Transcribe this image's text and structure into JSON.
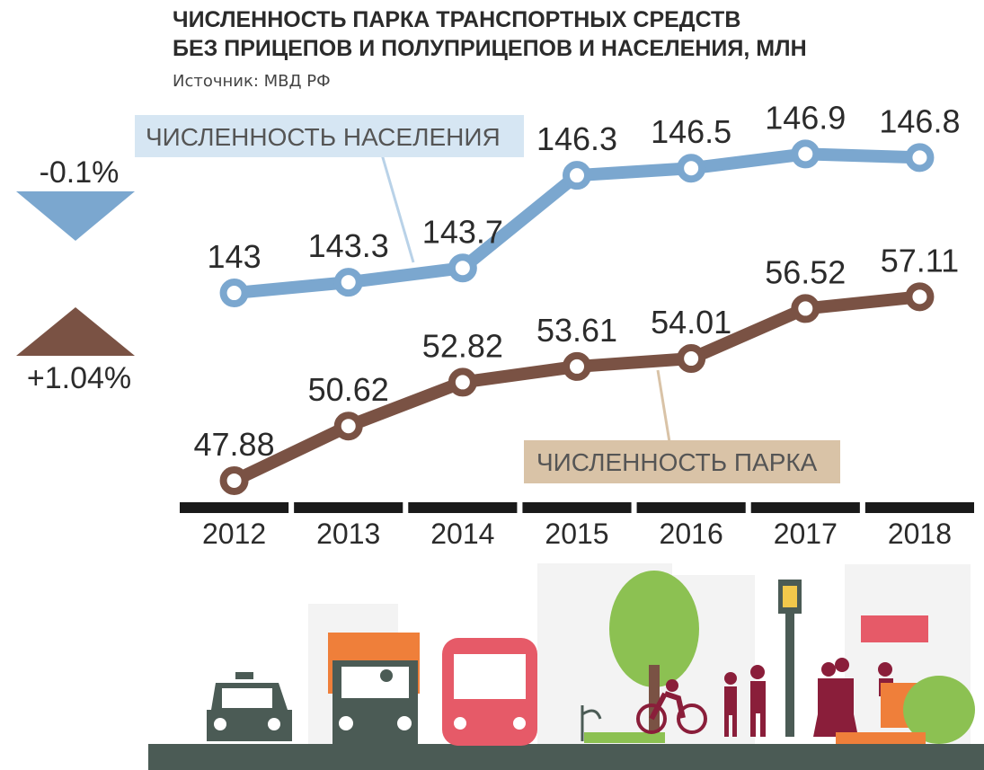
{
  "chart_data": {
    "type": "line",
    "title": [
      "ЧИСЛЕННОСТЬ ПАРКА ТРАНСПОРТНЫХ СРЕДСТВ",
      "БЕЗ ПРИЦЕПОВ И ПОЛУПРИЦЕПОВ И НАСЕЛЕНИЯ, МЛН"
    ],
    "subtitle": "Источник: МВД РФ",
    "annotations": [
      "-0.1%",
      "+1.04%"
    ],
    "categories": [
      "2012",
      "2013",
      "2014",
      "2015",
      "2016",
      "2017",
      "2018"
    ],
    "series": [
      {
        "name": "ЧИСЛЕННОСТЬ ПАРКА",
        "color": "#7a5244",
        "values": [
          47.88,
          50.62,
          52.82,
          53.61,
          54.01,
          56.52,
          57.11
        ]
      },
      {
        "name": "ЧИСЛЕННОСТЬ НАСЕЛЕНИЯ",
        "color": "#7ba7cf",
        "axis": "y2",
        "values": [
          143,
          143.3,
          143.7,
          146.3,
          146.5,
          146.9,
          146.8
        ]
      }
    ],
    "ylim": [
      46.75,
      67.5
    ],
    "y2lim": [
      137.1,
      148.7
    ]
  }
}
